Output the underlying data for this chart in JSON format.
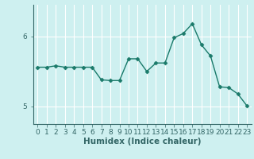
{
  "title": "",
  "xlabel": "Humidex (Indice chaleur)",
  "ylabel": "",
  "x_values": [
    0,
    1,
    2,
    3,
    4,
    5,
    6,
    7,
    8,
    9,
    10,
    11,
    12,
    13,
    14,
    15,
    16,
    17,
    18,
    19,
    20,
    21,
    22,
    23
  ],
  "y_values": [
    5.56,
    5.56,
    5.58,
    5.56,
    5.56,
    5.56,
    5.56,
    5.38,
    5.37,
    5.37,
    5.68,
    5.68,
    5.5,
    5.62,
    5.62,
    5.98,
    6.04,
    6.18,
    5.88,
    5.72,
    5.28,
    5.27,
    5.18,
    5.01
  ],
  "line_color": "#1a7a6a",
  "marker": "D",
  "marker_size": 2.5,
  "bg_color": "#cef0f0",
  "grid_color": "#ffffff",
  "axis_color": "#336666",
  "ylim": [
    4.75,
    6.45
  ],
  "yticks": [
    5,
    6
  ],
  "xlim": [
    -0.5,
    23.5
  ],
  "xtick_labels": [
    "0",
    "1",
    "2",
    "3",
    "4",
    "5",
    "6",
    "7",
    "8",
    "9",
    "10",
    "11",
    "12",
    "13",
    "14",
    "15",
    "16",
    "17",
    "18",
    "19",
    "20",
    "21",
    "22",
    "23"
  ],
  "label_fontsize": 7.5,
  "tick_fontsize": 6.5
}
